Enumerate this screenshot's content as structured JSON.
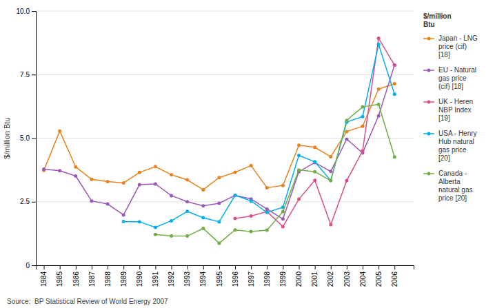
{
  "chart_data": {
    "type": "line",
    "x": [
      1984,
      1985,
      1986,
      1987,
      1988,
      1989,
      1990,
      1991,
      1992,
      1993,
      1994,
      1995,
      1996,
      1997,
      1998,
      1999,
      2000,
      2001,
      2002,
      2003,
      2004,
      2005,
      2006
    ],
    "series": [
      {
        "name": "Japan - LNG\nprice (cif)\n[18]",
        "color": "#E8821E",
        "values": [
          3.73,
          5.28,
          3.87,
          3.38,
          3.29,
          3.24,
          3.65,
          3.88,
          3.56,
          3.36,
          2.97,
          3.45,
          3.66,
          3.92,
          3.05,
          3.14,
          4.72,
          4.64,
          4.27,
          5.26,
          5.47,
          6.93,
          7.14
        ]
      },
      {
        "name": "EU - Natural\ngas price\n(cif) [18]",
        "color": "#9B59B6",
        "values": [
          3.78,
          3.72,
          3.51,
          2.53,
          2.41,
          1.98,
          3.17,
          3.2,
          2.74,
          2.5,
          2.34,
          2.44,
          2.75,
          2.61,
          2.21,
          1.82,
          3.68,
          4.04,
          3.69,
          4.96,
          4.42,
          5.88,
          7.87
        ]
      },
      {
        "name": "UK - Heren\nNBP Index\n[19]",
        "color": "#D94F8C",
        "values": [
          null,
          null,
          null,
          null,
          null,
          null,
          null,
          null,
          null,
          null,
          null,
          null,
          1.84,
          1.94,
          2.11,
          1.52,
          2.6,
          3.34,
          1.6,
          3.33,
          4.5,
          8.93,
          7.87
        ]
      },
      {
        "name": "USA - Henry\nHub natural\ngas price\n[20]",
        "color": "#00AEEF",
        "values": [
          null,
          null,
          null,
          null,
          null,
          1.72,
          1.71,
          1.49,
          1.75,
          2.12,
          1.87,
          1.71,
          2.75,
          2.53,
          2.08,
          2.28,
          4.32,
          4.07,
          3.33,
          5.63,
          5.85,
          8.69,
          6.73
        ]
      },
      {
        "name": "Canada -\nAlberta\nnatural gas\nprice [20]",
        "color": "#70AD47",
        "values": [
          null,
          null,
          null,
          null,
          null,
          null,
          null,
          1.21,
          1.15,
          1.15,
          1.45,
          0.87,
          1.39,
          1.33,
          1.38,
          2.11,
          3.75,
          3.68,
          3.33,
          5.7,
          6.23,
          6.33,
          4.26
        ]
      }
    ],
    "ylabel": "$/million Btu",
    "legend_title": "$/million\nBtu",
    "source": "Source:  BP Statistical Review of World Energy 2007",
    "xlim": [
      1983.5,
      2007.2
    ],
    "xticks": [
      1984,
      1985,
      1986,
      1987,
      1988,
      1989,
      1990,
      1991,
      1992,
      1993,
      1994,
      1995,
      1996,
      1997,
      1998,
      1999,
      2000,
      2001,
      2002,
      2003,
      2004,
      2005,
      2006
    ],
    "ylim": [
      0,
      10.0
    ],
    "yticks": [
      0,
      2.5,
      {
        "value": 5.0,
        "label": "5.0"
      },
      7.5,
      {
        "value": 10.0,
        "label": "10.0"
      }
    ],
    "grid": true,
    "legend": "right",
    "marker": "circle"
  }
}
